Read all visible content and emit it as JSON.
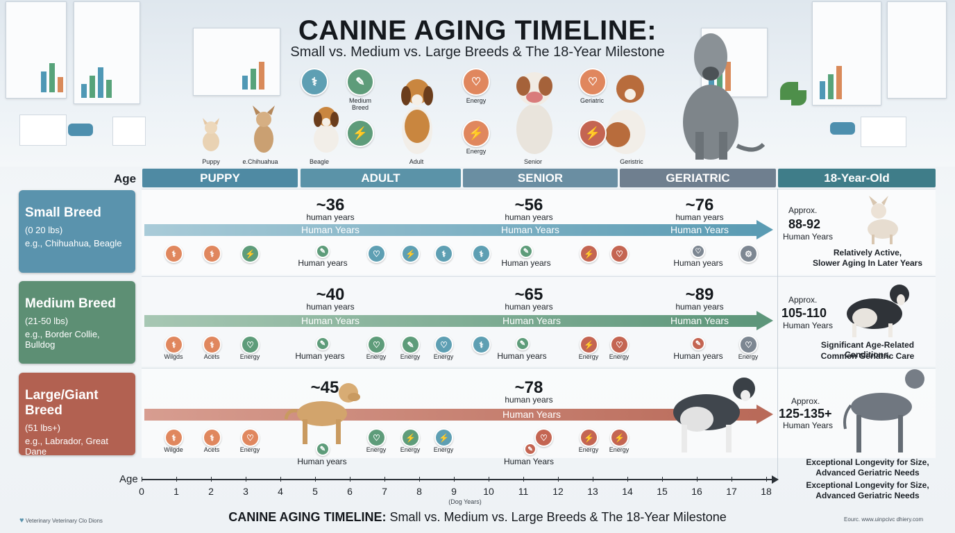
{
  "header": {
    "title": "CANINE AGING TIMELINE:",
    "subtitle": "Small vs. Medium vs. Large Breeds & The 18-Year Milestone"
  },
  "top_illustration": {
    "dog_labels": [
      "Puppy",
      "e.Chihuahua",
      "Beagle",
      "Adult",
      "Senior",
      "Geristric"
    ],
    "icon_labels": [
      "Medium Breed",
      "Energy",
      "Energy",
      "Geriatric"
    ]
  },
  "timeline": {
    "age_label": "Age",
    "stages": [
      "PUPPY",
      "ADULT",
      "SENIOR",
      "GERIATRIC",
      "18-Year-Old"
    ]
  },
  "breeds": [
    {
      "name": "Small Breed",
      "weight": "(0 20 lbs)",
      "examples": "e.g., Chihuahua, Beagle",
      "color": "#5a93ad",
      "milestones": [
        {
          "value": "~36",
          "unit": "human years"
        },
        {
          "value": "~56",
          "unit": "human years"
        },
        {
          "value": "~76",
          "unit": "human years"
        }
      ],
      "bar_text": "Human Years",
      "under_labels": [
        "Human years",
        "Human years",
        "Human years"
      ],
      "icon_labels": [],
      "approx_label": "Approx.",
      "approx_range": "88-92",
      "approx_unit": "Human Years",
      "desc_lines": [
        "Relatively Active,",
        "Slower Aging In Later Years"
      ]
    },
    {
      "name": "Medium Breed",
      "weight": "(21-50 lbs)",
      "examples": "e.g., Border Collie, Bulldog",
      "color": "#5d8f74",
      "milestones": [
        {
          "value": "~40",
          "unit": "human years"
        },
        {
          "value": "~65",
          "unit": "human years"
        },
        {
          "value": "~89",
          "unit": "human years"
        }
      ],
      "bar_text": "Human Years",
      "under_labels": [
        "Human years",
        "Human years",
        "Human years"
      ],
      "icon_labels": [
        "Wilgds",
        "Acets",
        "Energy",
        "Energy",
        "Energy",
        "Energy",
        "Energy",
        "Energy",
        "Energy"
      ],
      "approx_label": "Approx.",
      "approx_range": "105-110",
      "approx_unit": "Human Years",
      "desc_lines": [
        "Significant Age-Related Conditions,",
        "Common Geriatric Care"
      ]
    },
    {
      "name": "Large/Giant Breed",
      "weight": "(51 lbs+)",
      "examples": "e.g., Labrador, Great Dane",
      "color": "#b26151",
      "milestones": [
        {
          "value": "~45",
          "unit": ""
        },
        {
          "value": "~78",
          "unit": "human years"
        }
      ],
      "bar_text": "Human Years",
      "under_labels": [
        "Human years",
        "Human Years"
      ],
      "icon_labels": [
        "Wilgde",
        "Acets",
        "Energy",
        "Energy",
        "Energy",
        "Energy",
        "Energy",
        "Energy"
      ],
      "approx_label": "Approx.",
      "approx_range": "125-135+",
      "approx_unit": "Human Years",
      "desc_lines": [
        "Exceptional Longevity for Size,",
        "Advanced Geriatric Needs",
        "Exceptional Longevity for Size,",
        "Advanced Geriatric Needs"
      ]
    }
  ],
  "axis": {
    "label": "Age",
    "ticks": [
      "0",
      "1",
      "2",
      "3",
      "4",
      "5",
      "6",
      "7",
      "8",
      "9",
      "10",
      "11",
      "12",
      "13",
      "14",
      "15",
      "16",
      "17",
      "18"
    ],
    "unit_note": "(Dog Years)"
  },
  "footer": {
    "bottom_title_bold": "CANINE AGING TIMELINE:",
    "bottom_title_rest": " Small vs. Medium vs. Large Breeds & The 18-Year Milestone",
    "left_credit": "Veterinary Veterinary Clo Dions",
    "right_credit": "Eourc. www.uinpcivc dhiery.com"
  },
  "colors": {
    "puppy_head": "#4f8aa3",
    "adult_head": "#5b93a8",
    "senior_head": "#6a8ea2",
    "geriatric_head": "#6f7f8f",
    "eighteen_head": "#3f7d89"
  },
  "icons": [
    "joint-icon",
    "bandage-icon",
    "lightning-icon",
    "tooth-icon",
    "energy-icon",
    "geriatric-icon"
  ]
}
